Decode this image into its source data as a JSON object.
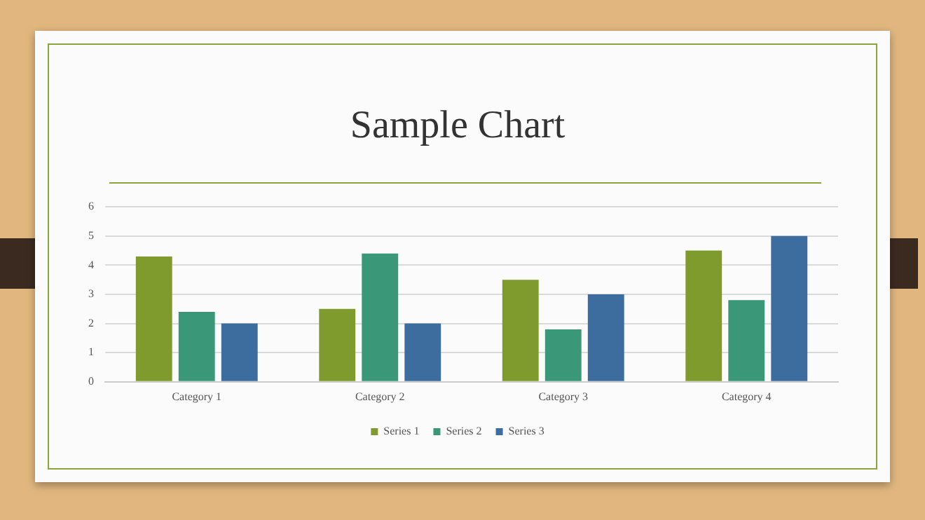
{
  "chart_data": {
    "type": "bar",
    "title": "Sample Chart",
    "categories": [
      "Category 1",
      "Category 2",
      "Category 3",
      "Category 4"
    ],
    "series": [
      {
        "name": "Series 1",
        "color": "#7f9a2d",
        "values": [
          4.3,
          2.5,
          3.5,
          4.5
        ]
      },
      {
        "name": "Series 2",
        "color": "#3a9777",
        "values": [
          2.4,
          4.4,
          1.8,
          2.8
        ]
      },
      {
        "name": "Series 3",
        "color": "#3d6c9e",
        "values": [
          2,
          2,
          3,
          5
        ]
      }
    ],
    "ylim": [
      0,
      6
    ],
    "yticks": [
      0,
      1,
      2,
      3,
      4,
      5,
      6
    ],
    "grid": "y",
    "legend": "bottom"
  }
}
